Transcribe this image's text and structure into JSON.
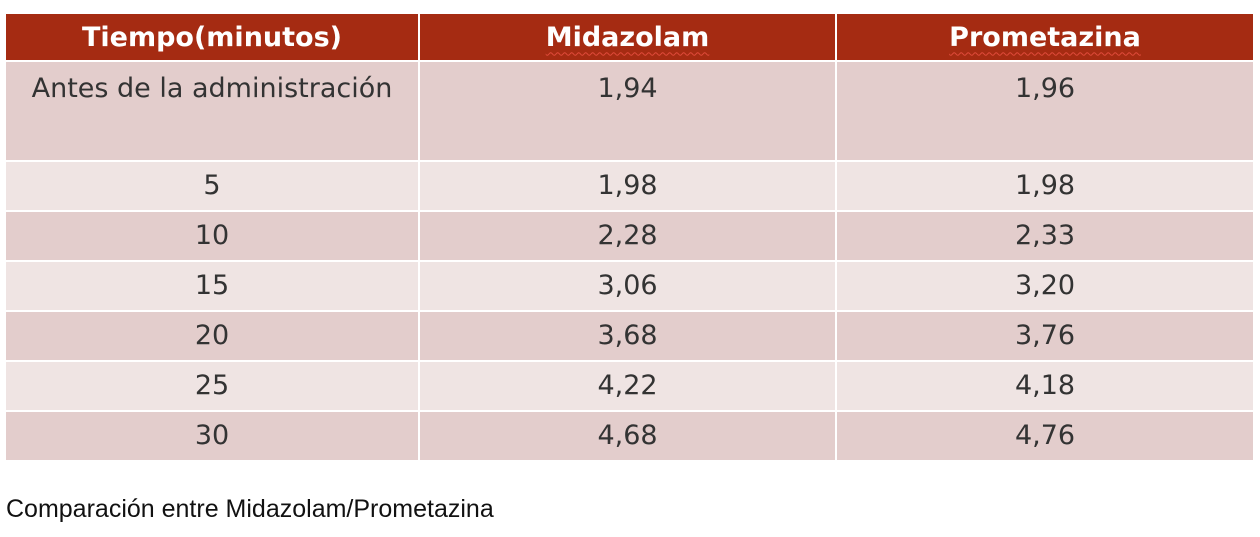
{
  "table": {
    "header": [
      "Tiempo(minutos)",
      "Midazolam",
      "Prometazina"
    ],
    "rows": [
      [
        "Antes de la administración",
        "1,94",
        "1,96"
      ],
      [
        "5",
        "1,98",
        "1,98"
      ],
      [
        "10",
        "2,28",
        "2,33"
      ],
      [
        "15",
        "3,06",
        "3,20"
      ],
      [
        "20",
        "3,68",
        "3,76"
      ],
      [
        "25",
        "4,22",
        "4,18"
      ],
      [
        "30",
        "4,68",
        "4,76"
      ]
    ]
  },
  "caption": "Comparación entre Midazolam/Prometazina"
}
